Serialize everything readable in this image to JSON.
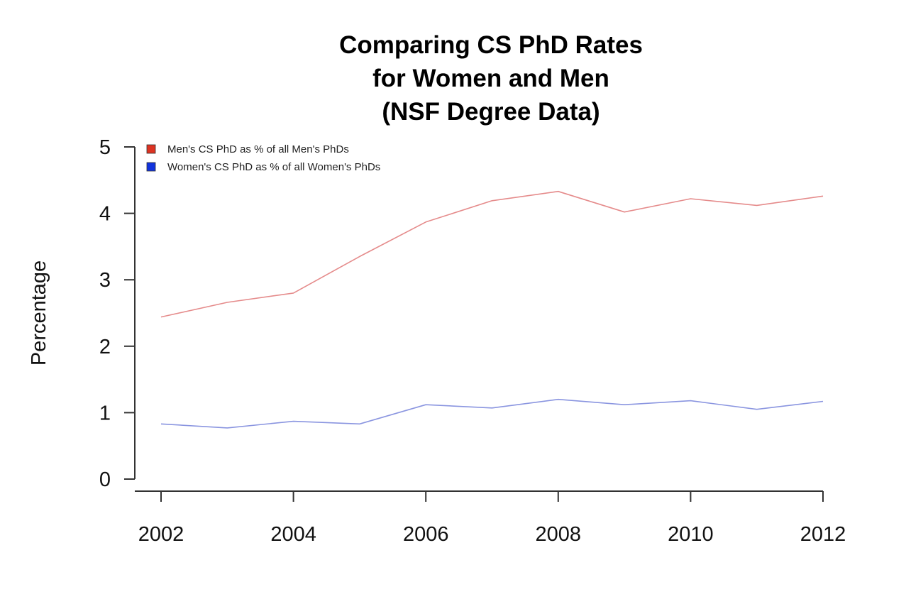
{
  "chart_data": {
    "type": "line",
    "title_lines": [
      "Comparing CS PhD Rates",
      "for Women and Men",
      "(NSF Degree Data)"
    ],
    "xlabel": "",
    "ylabel": "Percentage",
    "x": [
      2002,
      2003,
      2004,
      2005,
      2006,
      2007,
      2008,
      2009,
      2010,
      2011,
      2012
    ],
    "xlim": [
      2002,
      2012
    ],
    "ylim": [
      0,
      5
    ],
    "x_ticks": [
      2002,
      2004,
      2006,
      2008,
      2010,
      2012
    ],
    "y_ticks": [
      0,
      1,
      2,
      3,
      4,
      5
    ],
    "x_tick_labels": [
      "2002",
      "2004",
      "2006",
      "2008",
      "2010",
      "2012"
    ],
    "y_tick_labels": [
      "0",
      "1",
      "2",
      "3",
      "4",
      "5"
    ],
    "grid": false,
    "legend_position": "top-left",
    "series": [
      {
        "name": "Men's CS PhD as % of all Men's PhDs",
        "line_color": "#e58b8b",
        "legend_color": "#dd3322",
        "values": [
          2.44,
          2.66,
          2.8,
          3.35,
          3.87,
          4.19,
          4.33,
          4.02,
          4.22,
          4.12,
          4.26
        ]
      },
      {
        "name": "Women's CS PhD as % of all Women's PhDs",
        "line_color": "#8a95e0",
        "legend_color": "#1133dd",
        "values": [
          0.83,
          0.77,
          0.87,
          0.83,
          1.12,
          1.07,
          1.2,
          1.12,
          1.18,
          1.05,
          1.17
        ]
      }
    ]
  }
}
